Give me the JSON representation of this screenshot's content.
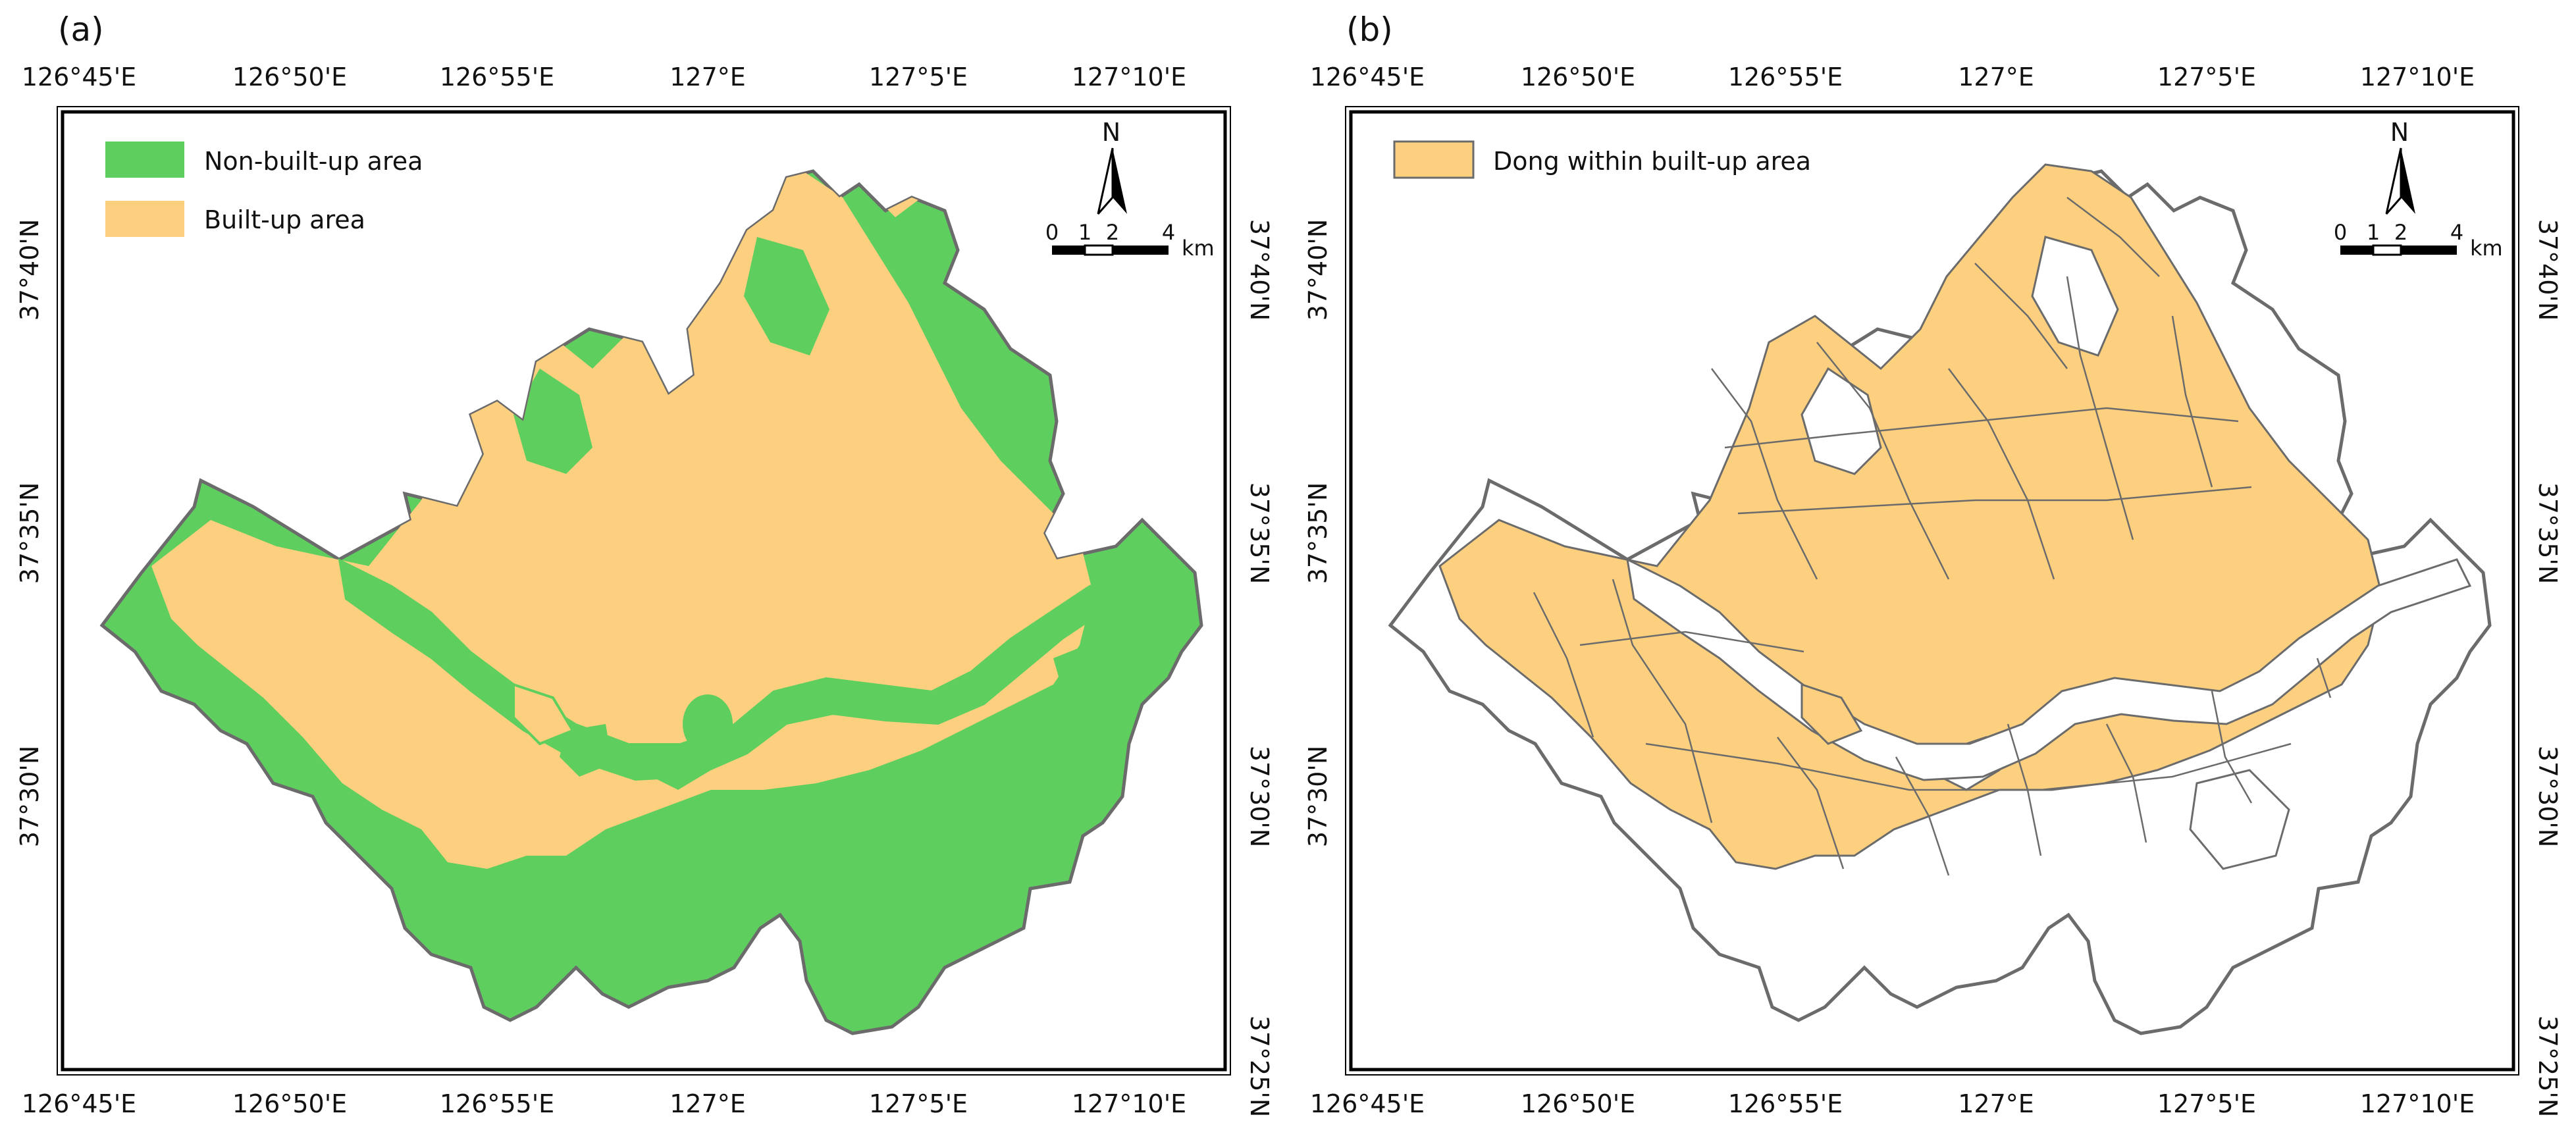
{
  "colors": {
    "non_built_up": "#5ecf5e",
    "built_up": "#fdd07f",
    "boundary": "#6b6b6b",
    "frame": "#000000"
  },
  "panels": [
    {
      "label": "(a)",
      "legend": [
        {
          "name": "Non-built-up area",
          "color": "#5ecf5e"
        },
        {
          "name": "Built-up area",
          "color": "#fdd07f"
        }
      ],
      "north_label": "N",
      "scale_ticks": [
        "0",
        "1",
        "2",
        "4"
      ],
      "scale_unit": "km",
      "lon_ticks": [
        "126°45'E",
        "126°50'E",
        "126°55'E",
        "127°E",
        "127°5'E",
        "127°10'E"
      ],
      "lat_ticks": [
        "37°40'N",
        "37°35'N",
        "37°30'N",
        "37°25'N"
      ]
    },
    {
      "label": "(b)",
      "legend": [
        {
          "name": "Dong within built-up area",
          "color": "#fdd07f"
        }
      ],
      "north_label": "N",
      "scale_ticks": [
        "0",
        "1",
        "2",
        "4"
      ],
      "scale_unit": "km",
      "lon_ticks": [
        "126°45'E",
        "126°50'E",
        "126°55'E",
        "127°E",
        "127°5'E",
        "127°10'E"
      ],
      "lat_ticks": [
        "37°40'N",
        "37°35'N",
        "37°30'N",
        "37°25'N"
      ]
    }
  ]
}
